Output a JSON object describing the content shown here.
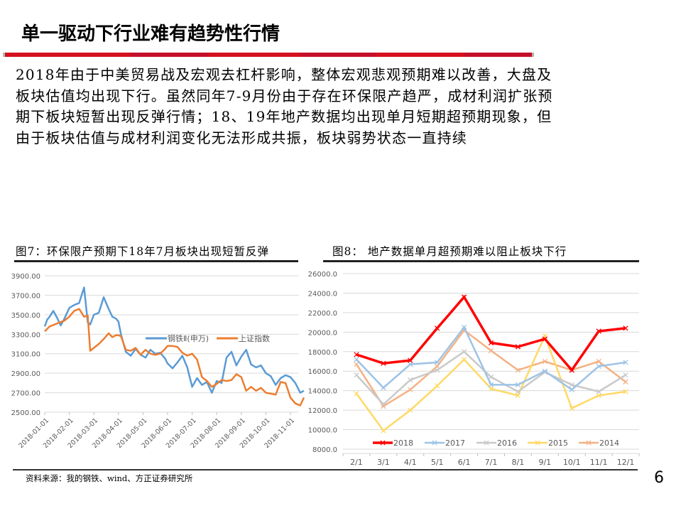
{
  "page": {
    "title": "单一驱动下行业难有趋势性行情",
    "paragraph_lines": [
      "2018年由于中美贸易战及宏观去杠杆影响，整体宏观悲观预期难以改善，大盘及",
      "板块估值均出现下行。虽然同年7-9月份由于存在环保限产趋严，成材利润扩张预",
      "期下板块短暂出现反弹行情；18、19年地产数据均出现单月短期超预期现象，但",
      "由于板块估值与成材利润变化无法形成共振，板块弱势状态一直持续"
    ],
    "fig7_title": "图7：环保限产预期下18年7月板块出现短暂反弹",
    "fig8_title": "图8：  地产数据单月超预期难以阻止板块下行",
    "source": "资料来源：我的钢铁、wind、方正证券研究所",
    "page_number": "6",
    "colors": {
      "accent_red": "#d4101e",
      "steel_blue": "#5b9bd5",
      "sh_orange": "#ed7d31",
      "y2018": "#ff0000",
      "y2017": "#9dc3e6",
      "y2016": "#c9c9c9",
      "y2015": "#ffd966",
      "y2014": "#f4b183"
    }
  },
  "chart_data": [
    {
      "type": "line",
      "title": "图7：环保限产预期下18年7月板块出现短暂反弹",
      "xlabel": "",
      "ylabel": "",
      "ylim": [
        2500,
        3900
      ],
      "yticks": [
        "3900.00",
        "3700.00",
        "3500.00",
        "3300.00",
        "3100.00",
        "2900.00",
        "2700.00",
        "2500.00"
      ],
      "categories": [
        "2018-01-01",
        "2018-02-01",
        "2018-03-01",
        "2018-04-01",
        "2018-05-01",
        "2018-06-01",
        "2018-07-01",
        "2018-08-01",
        "2018-09-01",
        "2018-10-01",
        "2018-11-01"
      ],
      "legend_position": "inside-right",
      "grid": true,
      "series": [
        {
          "name": "钢铁Ⅱ(申万)",
          "color": "#5b9bd5",
          "x_index": [
            0,
            0.1,
            0.2,
            0.35,
            0.5,
            0.65,
            0.8,
            1.0,
            1.2,
            1.4,
            1.6,
            1.75,
            1.85,
            2.0,
            2.2,
            2.4,
            2.6,
            2.75,
            2.9,
            3.0,
            3.1,
            3.3,
            3.5,
            3.7,
            3.9,
            4.1,
            4.3,
            4.5,
            4.7,
            4.9,
            5.0,
            5.2,
            5.4,
            5.6,
            5.8,
            6.0,
            6.2,
            6.4,
            6.6,
            6.8,
            7.0,
            7.2,
            7.4,
            7.6,
            7.8,
            8.0,
            8.2,
            8.4,
            8.6,
            8.8,
            9.0,
            9.2,
            9.4,
            9.6,
            9.8,
            10.0,
            10.2,
            10.4,
            10.55
          ],
          "values": [
            3380,
            3450,
            3480,
            3540,
            3470,
            3390,
            3460,
            3570,
            3600,
            3620,
            3780,
            3420,
            3400,
            3500,
            3520,
            3680,
            3560,
            3480,
            3460,
            3430,
            3300,
            3120,
            3080,
            3150,
            3090,
            3060,
            3140,
            3100,
            3110,
            3050,
            3000,
            2950,
            3010,
            3080,
            2960,
            2760,
            2850,
            2780,
            2810,
            2700,
            2820,
            2800,
            3060,
            3120,
            2980,
            3070,
            3140,
            2990,
            2960,
            2980,
            2900,
            2870,
            2780,
            2850,
            2880,
            2860,
            2800,
            2700,
            2720
          ]
        },
        {
          "name": "上证指数",
          "color": "#ed7d31",
          "x_index": [
            0,
            0.2,
            0.4,
            0.6,
            0.8,
            1.0,
            1.2,
            1.4,
            1.6,
            1.75,
            1.85,
            2.0,
            2.2,
            2.4,
            2.6,
            2.75,
            2.9,
            3.0,
            3.1,
            3.3,
            3.5,
            3.7,
            3.9,
            4.1,
            4.3,
            4.5,
            4.7,
            4.9,
            5.0,
            5.2,
            5.4,
            5.6,
            5.8,
            6.0,
            6.2,
            6.4,
            6.6,
            6.8,
            7.0,
            7.2,
            7.4,
            7.6,
            7.8,
            8.0,
            8.2,
            8.4,
            8.6,
            8.8,
            9.0,
            9.2,
            9.4,
            9.6,
            9.8,
            10.0,
            10.2,
            10.4,
            10.55
          ],
          "values": [
            3330,
            3380,
            3400,
            3420,
            3440,
            3480,
            3540,
            3560,
            3480,
            3490,
            3130,
            3160,
            3200,
            3250,
            3310,
            3270,
            3290,
            3290,
            3280,
            3140,
            3130,
            3160,
            3090,
            3140,
            3100,
            3090,
            3100,
            3150,
            3180,
            3180,
            3170,
            3110,
            3080,
            3100,
            3040,
            2860,
            2820,
            2760,
            2790,
            2830,
            2820,
            2830,
            2890,
            2860,
            2720,
            2760,
            2720,
            2750,
            2700,
            2690,
            2680,
            2810,
            2800,
            2650,
            2590,
            2570,
            2650
          ]
        }
      ]
    },
    {
      "type": "line",
      "title": "图8：  地产数据单月超预期难以阻止板块下行",
      "xlabel": "",
      "ylabel": "",
      "ylim": [
        8000,
        26000
      ],
      "yticks": [
        "26000.0",
        "24000.0",
        "22000.0",
        "20000.0",
        "18000.0",
        "16000.0",
        "14000.0",
        "12000.0",
        "10000.0",
        "8000.0"
      ],
      "categories": [
        "2/1",
        "3/1",
        "4/1",
        "5/1",
        "6/1",
        "7/1",
        "8/1",
        "9/1",
        "10/1",
        "11/1",
        "12/1"
      ],
      "legend_position": "bottom",
      "grid": true,
      "series": [
        {
          "name": "2018",
          "color": "#ff0000",
          "width": 3.5,
          "values": [
            17700,
            16800,
            17100,
            20400,
            23600,
            18900,
            18500,
            19300,
            16100,
            20100,
            20400
          ]
        },
        {
          "name": "2017",
          "color": "#9dc3e6",
          "width": 2.5,
          "values": [
            17200,
            14300,
            16700,
            16900,
            20500,
            14600,
            14600,
            16000,
            14100,
            16500,
            16900
          ]
        },
        {
          "name": "2016",
          "color": "#c9c9c9",
          "width": 2.5,
          "values": [
            15600,
            12600,
            15100,
            16100,
            18000,
            15400,
            13900,
            15900,
            14600,
            13900,
            15600
          ]
        },
        {
          "name": "2015",
          "color": "#ffd966",
          "width": 2.5,
          "values": [
            13700,
            9900,
            12000,
            14500,
            17200,
            14200,
            13500,
            19600,
            12200,
            13500,
            13900
          ]
        },
        {
          "name": "2014",
          "color": "#f4b183",
          "width": 2.5,
          "values": [
            16700,
            12400,
            14100,
            16500,
            20200,
            18100,
            16100,
            17000,
            16100,
            17000,
            14900
          ]
        }
      ]
    }
  ]
}
